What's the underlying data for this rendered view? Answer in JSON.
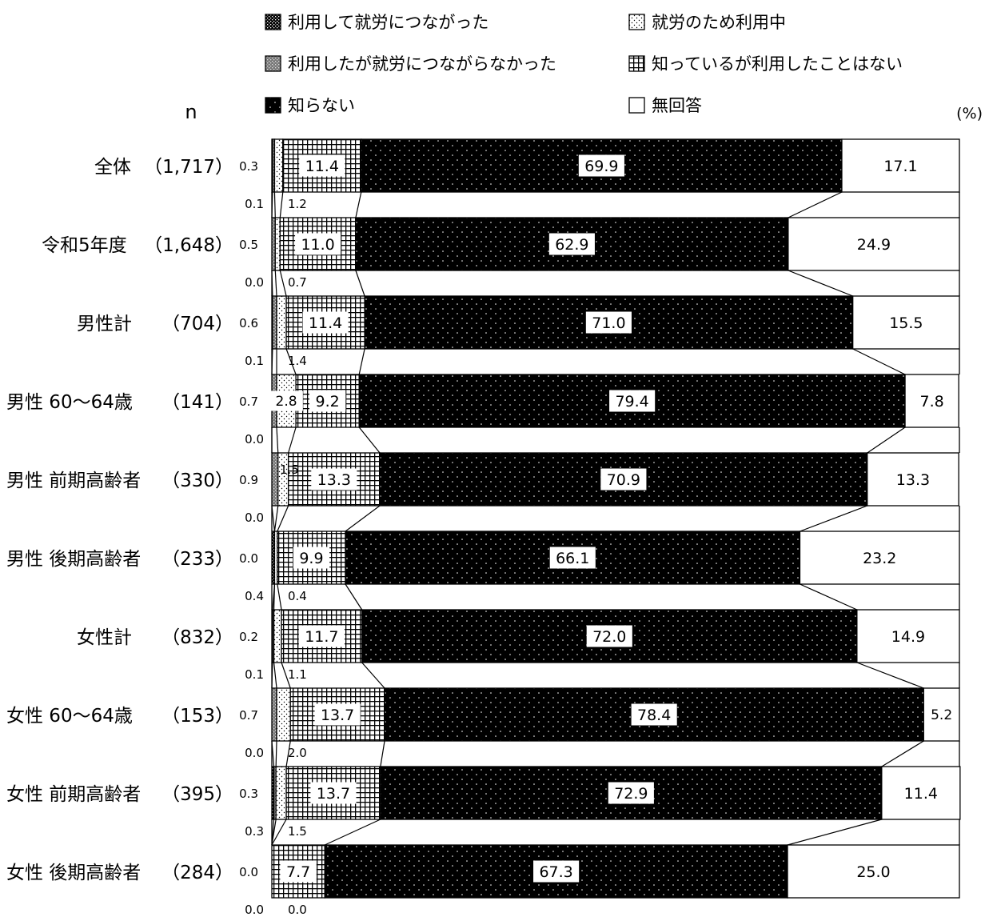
{
  "chart_data": {
    "type": "bar",
    "stacked": true,
    "orientation": "horizontal",
    "unit": "(%)",
    "n_header": "n",
    "xlim": [
      0,
      100
    ],
    "grid": false,
    "legend_position": "top",
    "series": [
      {
        "name": "利用して就労につながった",
        "pattern": "dense",
        "values": [
          0.1,
          0.0,
          0.1,
          0.0,
          0.0,
          0.4,
          0.1,
          0.0,
          0.3,
          0.0
        ]
      },
      {
        "name": "利用したが就労につながらなかった",
        "pattern": "gray",
        "values": [
          0.3,
          0.5,
          0.6,
          0.7,
          0.9,
          0.0,
          0.2,
          0.7,
          0.3,
          0.0
        ]
      },
      {
        "name": "就労のため利用中",
        "pattern": "dots",
        "values": [
          1.2,
          0.7,
          1.4,
          2.8,
          1.5,
          0.4,
          1.1,
          2.0,
          1.5,
          0.0
        ]
      },
      {
        "name": "知っているが利用したことはない",
        "pattern": "grid",
        "values": [
          11.4,
          11.0,
          11.4,
          9.2,
          13.3,
          9.9,
          11.7,
          13.7,
          13.7,
          7.7
        ]
      },
      {
        "name": "知らない",
        "pattern": "black",
        "values": [
          69.9,
          62.9,
          71.0,
          79.4,
          70.9,
          66.1,
          72.0,
          78.4,
          72.9,
          67.3
        ]
      },
      {
        "name": "無回答",
        "pattern": "white",
        "values": [
          17.1,
          24.9,
          15.5,
          7.8,
          13.3,
          23.2,
          14.9,
          5.2,
          11.4,
          25.0
        ]
      }
    ],
    "categories": [
      {
        "label": "全体",
        "n": "（1,717）"
      },
      {
        "label": "令和5年度",
        "n": "（1,648）"
      },
      {
        "label": "男性計",
        "n": "（704）"
      },
      {
        "label": "男性 60～64歳",
        "n": "（141）"
      },
      {
        "label": "男性 前期高齢者",
        "n": "（330）"
      },
      {
        "label": "男性 後期高齢者",
        "n": "（233）"
      },
      {
        "label": "女性計",
        "n": "（832）"
      },
      {
        "label": "女性 60～64歳",
        "n": "（153）"
      },
      {
        "label": "女性 前期高齢者",
        "n": "（395）"
      },
      {
        "label": "女性 後期高齢者",
        "n": "（284）"
      }
    ],
    "value_labels": [
      [
        "0.1",
        "0.3",
        "1.2",
        "11.4",
        "69.9",
        "17.1"
      ],
      [
        "0.0",
        "0.5",
        "0.7",
        "11.0",
        "62.9",
        "24.9"
      ],
      [
        "0.1",
        "0.6",
        "1.4",
        "11.4",
        "71.0",
        "15.5"
      ],
      [
        "0.0",
        "0.7",
        "2.8",
        "9.2",
        "79.4",
        "7.8"
      ],
      [
        "0.0",
        "0.9",
        "1.5",
        "13.3",
        "70.9",
        "13.3"
      ],
      [
        "0.4",
        "0.0",
        "0.4",
        "9.9",
        "66.1",
        "23.2"
      ],
      [
        "0.1",
        "0.2",
        "1.1",
        "11.7",
        "72.0",
        "14.9"
      ],
      [
        "0.0",
        "0.7",
        "2.0",
        "13.7",
        "78.4",
        "5.2"
      ],
      [
        "0.3",
        "0.3",
        "1.5",
        "13.7",
        "72.9",
        "11.4"
      ],
      [
        "0.0",
        "0.0",
        "0.0",
        "7.7",
        "67.3",
        "25.0"
      ]
    ]
  }
}
